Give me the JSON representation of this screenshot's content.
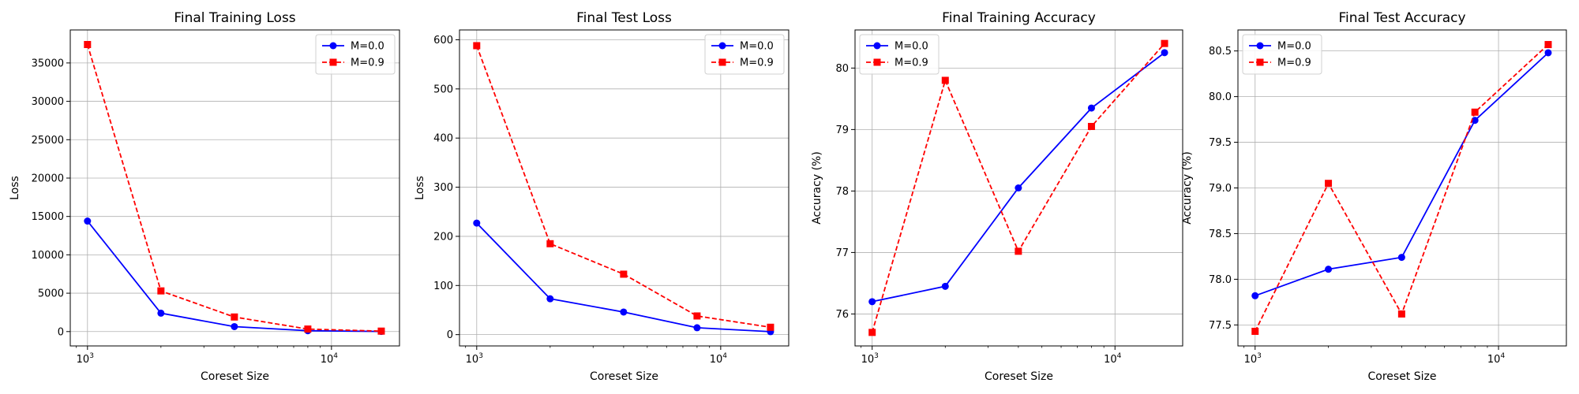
{
  "chart_data": [
    {
      "type": "line",
      "title": "Final Training Loss",
      "xlabel": "Coreset Size",
      "ylabel": "Loss",
      "x": [
        1000,
        2000,
        4000,
        8000,
        16000
      ],
      "xscale": "log",
      "xlim": [
        850,
        19000
      ],
      "ylim": [
        -1870,
        39300
      ],
      "yticks": [
        0,
        5000,
        10000,
        15000,
        20000,
        25000,
        30000,
        35000
      ],
      "ytick_labels": [
        "0",
        "5000",
        "10000",
        "15000",
        "20000",
        "25000",
        "30000",
        "35000"
      ],
      "grid": true,
      "legend": "top-right",
      "series": [
        {
          "name": "M=0.0",
          "color": "#0000ff",
          "style": "solid",
          "marker": "circle",
          "values": [
            14400,
            2400,
            650,
            110,
            20
          ]
        },
        {
          "name": "M=0.9",
          "color": "#ff0000",
          "style": "dashed",
          "marker": "square",
          "values": [
            37400,
            5300,
            1900,
            330,
            60
          ]
        }
      ]
    },
    {
      "type": "line",
      "title": "Final Test Loss",
      "xlabel": "Coreset Size",
      "ylabel": "Loss",
      "x": [
        1000,
        2000,
        4000,
        8000,
        16000
      ],
      "xscale": "log",
      "xlim": [
        850,
        19000
      ],
      "ylim": [
        -23,
        620
      ],
      "yticks": [
        0,
        100,
        200,
        300,
        400,
        500,
        600
      ],
      "ytick_labels": [
        "0",
        "100",
        "200",
        "300",
        "400",
        "500",
        "600"
      ],
      "grid": true,
      "legend": "top-right",
      "series": [
        {
          "name": "M=0.0",
          "color": "#0000ff",
          "style": "solid",
          "marker": "circle",
          "values": [
            227,
            73,
            46,
            14,
            6
          ]
        },
        {
          "name": "M=0.9",
          "color": "#ff0000",
          "style": "dashed",
          "marker": "square",
          "values": [
            588,
            185,
            123,
            38,
            15
          ]
        }
      ]
    },
    {
      "type": "line",
      "title": "Final Training Accuracy",
      "xlabel": "Coreset Size",
      "ylabel": "Accuracy (%)",
      "x": [
        1000,
        2000,
        4000,
        8000,
        16000
      ],
      "xscale": "log",
      "xlim": [
        850,
        19000
      ],
      "ylim": [
        75.48,
        80.62
      ],
      "yticks": [
        76,
        77,
        78,
        79,
        80
      ],
      "ytick_labels": [
        "76",
        "77",
        "78",
        "79",
        "80"
      ],
      "grid": true,
      "legend": "top-left",
      "series": [
        {
          "name": "M=0.0",
          "color": "#0000ff",
          "style": "solid",
          "marker": "circle",
          "values": [
            76.2,
            76.45,
            78.05,
            79.35,
            80.25
          ]
        },
        {
          "name": "M=0.9",
          "color": "#ff0000",
          "style": "dashed",
          "marker": "square",
          "values": [
            75.7,
            79.8,
            77.02,
            79.05,
            80.4
          ]
        }
      ]
    },
    {
      "type": "line",
      "title": "Final Test Accuracy",
      "xlabel": "Coreset Size",
      "ylabel": "Accuracy (%)",
      "x": [
        1000,
        2000,
        4000,
        8000,
        16000
      ],
      "xscale": "log",
      "xlim": [
        850,
        19000
      ],
      "ylim": [
        77.27,
        80.73
      ],
      "yticks": [
        77.5,
        78.0,
        78.5,
        79.0,
        79.5,
        80.0,
        80.5
      ],
      "ytick_labels": [
        "77.5",
        "78.0",
        "78.5",
        "79.0",
        "79.5",
        "80.0",
        "80.5"
      ],
      "grid": true,
      "legend": "top-left",
      "series": [
        {
          "name": "M=0.0",
          "color": "#0000ff",
          "style": "solid",
          "marker": "circle",
          "values": [
            77.82,
            78.11,
            78.24,
            79.74,
            80.48
          ]
        },
        {
          "name": "M=0.9",
          "color": "#ff0000",
          "style": "dashed",
          "marker": "square",
          "values": [
            77.43,
            79.05,
            77.62,
            79.83,
            80.57
          ]
        }
      ]
    }
  ]
}
